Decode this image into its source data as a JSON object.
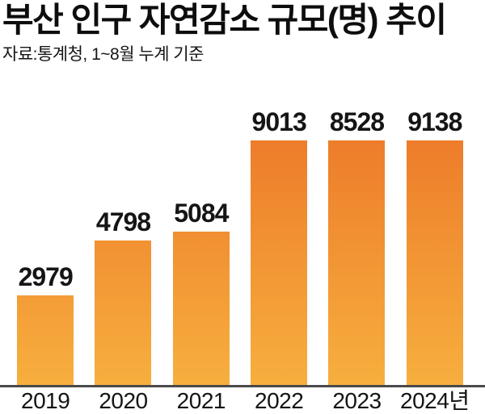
{
  "header": {
    "title": "부산 인구 자연감소 규모(명) 추이",
    "source_note": "자료:통계청, 1~8월 누계 기준"
  },
  "colors": {
    "bar_gradient_top": "#EC7628",
    "bar_gradient_bottom": "#F7AF3E",
    "axis": "#4A4A4A",
    "text": "#121212"
  },
  "chart_data": {
    "type": "bar",
    "title": "부산 인구 자연감소 규모(명) 추이",
    "subtitle": "자료:통계청, 1~8월 누계 기준",
    "categories": [
      "2019",
      "2020",
      "2021",
      "2022",
      "2023",
      "2024년"
    ],
    "values": [
      2979,
      4798,
      5084,
      9013,
      8528,
      9138
    ],
    "xlabel": "",
    "ylabel": "",
    "ylim": [
      0,
      9300
    ],
    "grid": false,
    "legend": false,
    "value_labels_shown": true,
    "bar_orientation": "vertical"
  }
}
